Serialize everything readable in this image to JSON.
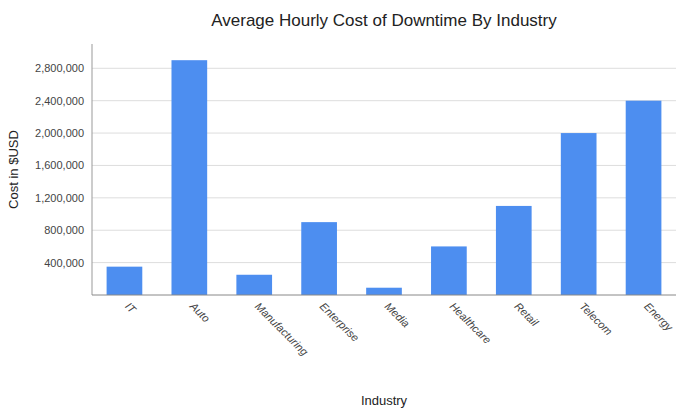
{
  "chart_data": {
    "type": "bar",
    "title": "Average Hourly Cost of Downtime By Industry",
    "xlabel": "Industry",
    "ylabel": "Cost in $USD",
    "categories": [
      "IT",
      "Auto",
      "Manufacturing",
      "Enterprise",
      "Media",
      "Healthcare",
      "Retail",
      "Telecom",
      "Energy"
    ],
    "values": [
      350000,
      2900000,
      250000,
      900000,
      90000,
      600000,
      1100000,
      2000000,
      2400000
    ],
    "color": "#4d8ef0",
    "ylim": [
      0,
      3100000
    ],
    "yticks": [
      {
        "value": 400000,
        "label": "400,000"
      },
      {
        "value": 800000,
        "label": "800,000"
      },
      {
        "value": 1200000,
        "label": "1,200,000"
      },
      {
        "value": 1600000,
        "label": "1,600,000"
      },
      {
        "value": 2000000,
        "label": "2,000,000"
      },
      {
        "value": 2400000,
        "label": "2,400,000"
      },
      {
        "value": 2800000,
        "label": "2,800,000"
      }
    ],
    "grid": true
  }
}
